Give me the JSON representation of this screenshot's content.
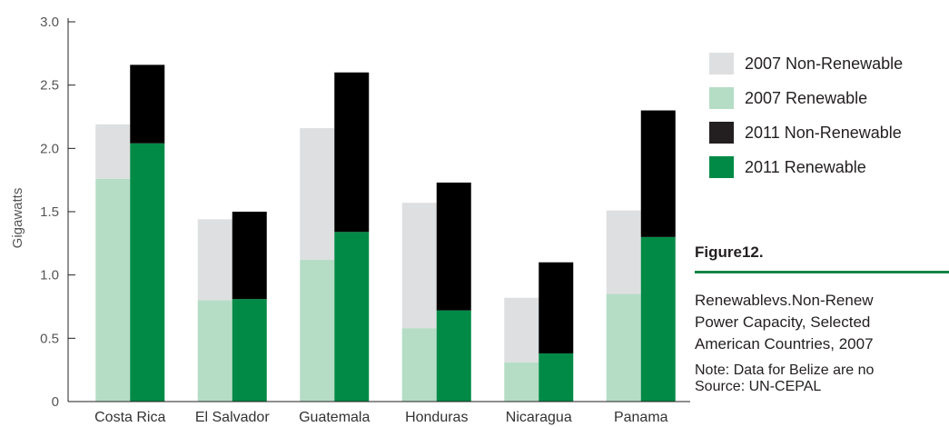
{
  "chart_data": {
    "type": "bar",
    "stacked": true,
    "categories": [
      "Costa Rica",
      "El Salvador",
      "Guatemala",
      "Honduras",
      "Nicaragua",
      "Panama"
    ],
    "ylabel": "Gigawatts",
    "xlabel": "",
    "ylim": [
      0,
      3.0
    ],
    "yticks": [
      "0",
      "0.5",
      "1.0",
      "1.5",
      "2.0",
      "2.5",
      "3.0"
    ],
    "yticks_values": [
      0,
      0.5,
      1.0,
      1.5,
      2.0,
      2.5,
      3.0
    ],
    "grid": false,
    "legend_position": "right",
    "groups": [
      {
        "year": "2007",
        "renewable": [
          1.76,
          0.8,
          1.12,
          0.58,
          0.31,
          0.85
        ],
        "non_renewable": [
          0.43,
          0.64,
          1.04,
          0.99,
          0.51,
          0.66
        ],
        "renewable_color": "#b5ddc6",
        "non_renewable_color": "#dedfe0"
      },
      {
        "year": "2011",
        "renewable": [
          2.04,
          0.81,
          1.34,
          0.72,
          0.38,
          1.3
        ],
        "non_renewable": [
          0.62,
          0.69,
          1.26,
          1.01,
          0.72,
          1.0
        ],
        "renewable_color": "#008a46",
        "non_renewable_color": "#000000"
      }
    ],
    "legend": [
      {
        "label": "2007 Non-Renewable",
        "color": "#dedfe0"
      },
      {
        "label": "2007 Renewable",
        "color": "#b5ddc6"
      },
      {
        "label": "2011 Non-Renewable",
        "color": "#231f20"
      },
      {
        "label": "2011 Renewable",
        "color": "#008a46"
      }
    ]
  },
  "figure": {
    "title": "Figure12.",
    "caption_lines": [
      "Renewablevs.Non-Renew",
      "Power Capacity, Selected",
      "American Countries, 2007"
    ],
    "note": "Note: Data for Belize are no",
    "source": "Source: UN-CEPAL"
  }
}
